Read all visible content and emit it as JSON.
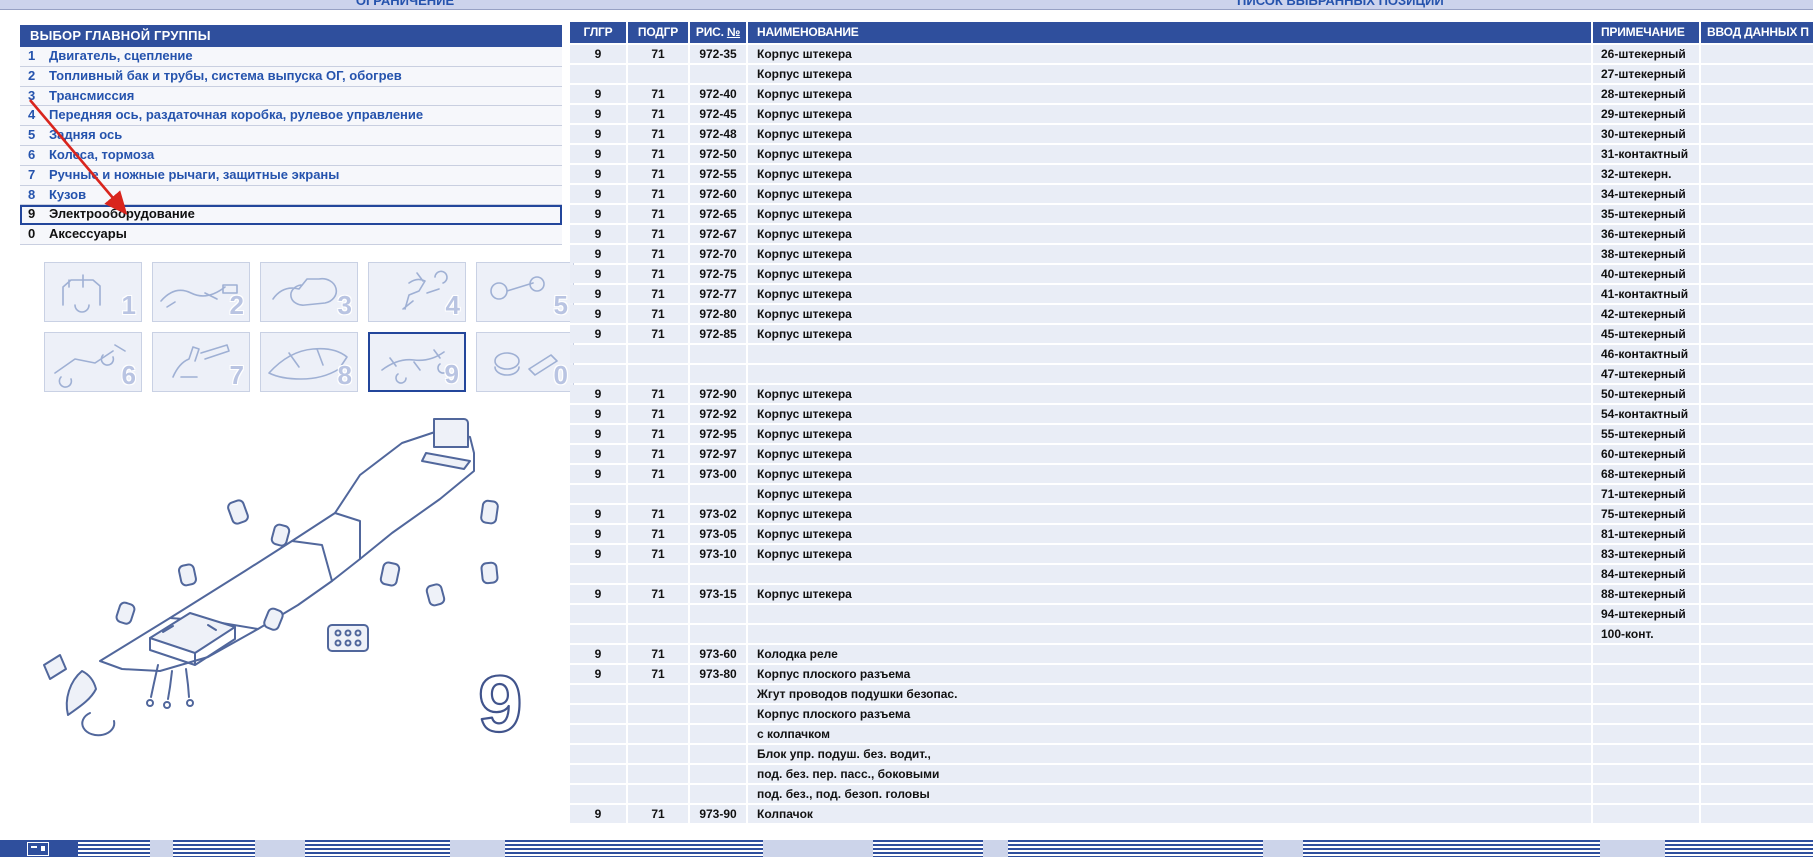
{
  "tabs": {
    "left": "ОГРАНИЧЕНИЕ",
    "right": "ПИСОК ВЫБРАННЫХ ПОЗИЦИЙ"
  },
  "left_panel": {
    "title": "ВЫБОР ГЛАВНОЙ ГРУППЫ",
    "groups": [
      {
        "num": "1",
        "label": "Двигатель, сцепление",
        "selected": false,
        "dark": false
      },
      {
        "num": "2",
        "label": "Топливный бак и трубы, система выпуска ОГ, обогрев",
        "selected": false,
        "dark": false
      },
      {
        "num": "3",
        "label": "Трансмиссия",
        "selected": false,
        "dark": false
      },
      {
        "num": "4",
        "label": "Передняя ось, раздаточная коробка, рулевое управление",
        "selected": false,
        "dark": false
      },
      {
        "num": "5",
        "label": "Задняя ось",
        "selected": false,
        "dark": false
      },
      {
        "num": "6",
        "label": "Колеса, тормоза",
        "selected": false,
        "dark": false
      },
      {
        "num": "7",
        "label": "Ручные и ножные рычаги, защитные экраны",
        "selected": false,
        "dark": false
      },
      {
        "num": "8",
        "label": "Кузов",
        "selected": false,
        "dark": false
      },
      {
        "num": "9",
        "label": "Электрооборудование",
        "selected": true,
        "dark": true
      },
      {
        "num": "0",
        "label": "Аксессуары",
        "selected": false,
        "dark": true
      }
    ],
    "thumbnails": [
      {
        "num": "1",
        "selected": false
      },
      {
        "num": "2",
        "selected": false
      },
      {
        "num": "3",
        "selected": false
      },
      {
        "num": "4",
        "selected": false
      },
      {
        "num": "5",
        "selected": false
      },
      {
        "num": "6",
        "selected": false
      },
      {
        "num": "7",
        "selected": false
      },
      {
        "num": "8",
        "selected": false
      },
      {
        "num": "9",
        "selected": true
      },
      {
        "num": "0",
        "selected": false
      }
    ],
    "watermark": "9"
  },
  "table": {
    "headers": [
      "ГЛГР",
      "ПОДГР",
      "РИС. №",
      "НАИМЕНОВАНИЕ",
      "ПРИМЕЧАНИЕ",
      "ВВОД ДАННЫХ П"
    ],
    "rows": [
      {
        "g": "9",
        "s": "71",
        "f": "972-35",
        "n": "Корпус штекера",
        "note": "26-штекерный"
      },
      {
        "g": "",
        "s": "",
        "f": "",
        "n": "Корпус штекера",
        "note": "27-штекерный"
      },
      {
        "g": "9",
        "s": "71",
        "f": "972-40",
        "n": "Корпус штекера",
        "note": "28-штекерный"
      },
      {
        "g": "9",
        "s": "71",
        "f": "972-45",
        "n": "Корпус штекера",
        "note": "29-штекерный"
      },
      {
        "g": "9",
        "s": "71",
        "f": "972-48",
        "n": "Корпус штекера",
        "note": "30-штекерный"
      },
      {
        "g": "9",
        "s": "71",
        "f": "972-50",
        "n": "Корпус штекера",
        "note": "31-контактный"
      },
      {
        "g": "9",
        "s": "71",
        "f": "972-55",
        "n": "Корпус штекера",
        "note": "32-штекерн."
      },
      {
        "g": "9",
        "s": "71",
        "f": "972-60",
        "n": "Корпус штекера",
        "note": "34-штекерный"
      },
      {
        "g": "9",
        "s": "71",
        "f": "972-65",
        "n": "Корпус штекера",
        "note": "35-штекерный"
      },
      {
        "g": "9",
        "s": "71",
        "f": "972-67",
        "n": "Корпус штекера",
        "note": "36-штекерный"
      },
      {
        "g": "9",
        "s": "71",
        "f": "972-70",
        "n": "Корпус штекера",
        "note": "38-штекерный"
      },
      {
        "g": "9",
        "s": "71",
        "f": "972-75",
        "n": "Корпус штекера",
        "note": "40-штекерный"
      },
      {
        "g": "9",
        "s": "71",
        "f": "972-77",
        "n": "Корпус штекера",
        "note": "41-контактный"
      },
      {
        "g": "9",
        "s": "71",
        "f": "972-80",
        "n": "Корпус штекера",
        "note": "42-штекерный"
      },
      {
        "g": "9",
        "s": "71",
        "f": "972-85",
        "n": "Корпус штекера",
        "note": "45-штекерный"
      },
      {
        "g": "",
        "s": "",
        "f": "",
        "n": "",
        "note": "46-контактный"
      },
      {
        "g": "",
        "s": "",
        "f": "",
        "n": "",
        "note": "47-штекерный"
      },
      {
        "g": "9",
        "s": "71",
        "f": "972-90",
        "n": "Корпус штекера",
        "note": "50-штекерный"
      },
      {
        "g": "9",
        "s": "71",
        "f": "972-92",
        "n": "Корпус штекера",
        "note": "54-контактный"
      },
      {
        "g": "9",
        "s": "71",
        "f": "972-95",
        "n": "Корпус штекера",
        "note": "55-штекерный"
      },
      {
        "g": "9",
        "s": "71",
        "f": "972-97",
        "n": "Корпус штекера",
        "note": "60-штекерный"
      },
      {
        "g": "9",
        "s": "71",
        "f": "973-00",
        "n": "Корпус штекера",
        "note": "68-штекерный"
      },
      {
        "g": "",
        "s": "",
        "f": "",
        "n": "Корпус штекера",
        "note": "71-штекерный"
      },
      {
        "g": "9",
        "s": "71",
        "f": "973-02",
        "n": "Корпус штекера",
        "note": "75-штекерный"
      },
      {
        "g": "9",
        "s": "71",
        "f": "973-05",
        "n": "Корпус штекера",
        "note": "81-штекерный"
      },
      {
        "g": "9",
        "s": "71",
        "f": "973-10",
        "n": "Корпус штекера",
        "note": "83-штекерный"
      },
      {
        "g": "",
        "s": "",
        "f": "",
        "n": "",
        "note": "84-штекерный"
      },
      {
        "g": "9",
        "s": "71",
        "f": "973-15",
        "n": "Корпус штекера",
        "note": "88-штекерный"
      },
      {
        "g": "",
        "s": "",
        "f": "",
        "n": "",
        "note": "94-штекерный"
      },
      {
        "g": "",
        "s": "",
        "f": "",
        "n": "",
        "note": "100-конт."
      },
      {
        "g": "9",
        "s": "71",
        "f": "973-60",
        "n": "Колодка реле",
        "note": ""
      },
      {
        "g": "9",
        "s": "71",
        "f": "973-80",
        "n": "Корпус плоского разъема",
        "note": ""
      },
      {
        "g": "",
        "s": "",
        "f": "",
        "n": "Жгут проводов подушки безопас.",
        "note": ""
      },
      {
        "g": "",
        "s": "",
        "f": "",
        "n": "Корпус плоского разъема",
        "note": ""
      },
      {
        "g": "",
        "s": "",
        "f": "",
        "n": "с колпачком",
        "note": ""
      },
      {
        "g": "",
        "s": "",
        "f": "",
        "n": "Блок упр. подуш. без. водит.,",
        "note": ""
      },
      {
        "g": "",
        "s": "",
        "f": "",
        "n": "под. без. пер. пасс., боковыми",
        "note": ""
      },
      {
        "g": "",
        "s": "",
        "f": "",
        "n": "под. без., под. безоп. головы",
        "note": ""
      },
      {
        "g": "9",
        "s": "71",
        "f": "973-90",
        "n": "Колпачок",
        "note": ""
      }
    ]
  },
  "icons": {
    "taskbar_app_icon": "window-icon",
    "annotation": "red-arrow-icon"
  },
  "colors": {
    "header_blue": "#2F4F9D",
    "row_bg": "#E9EDF6",
    "link_blue": "#2553AD",
    "selection_border": "#23469B",
    "arrow_red": "#D9251D",
    "thumb_number": "#B9C4E2",
    "diagram_line": "#51679C",
    "top_strip": "#CCD3EC"
  }
}
